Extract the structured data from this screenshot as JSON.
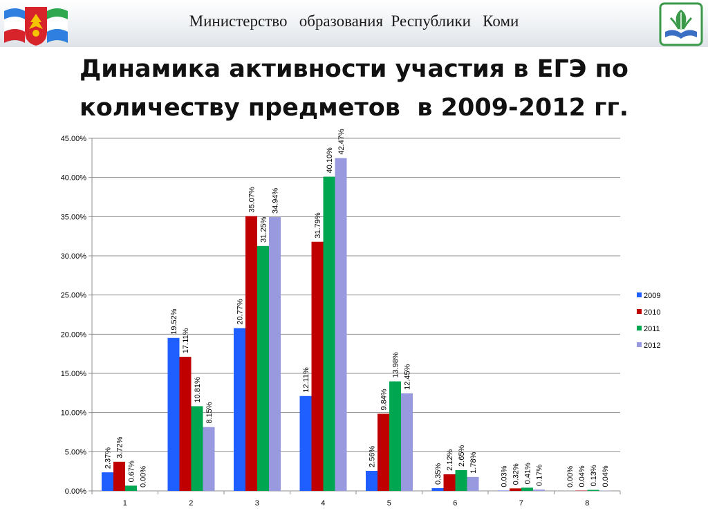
{
  "header": {
    "organization": "Министерство   образования  Республики   Коми"
  },
  "title": {
    "line1": "Динамика активности участия в ЕГЭ по",
    "line2": "количеству предметов  в 2009-2012 гг."
  },
  "colors": {
    "header_band": "#e4e8ec",
    "series": [
      "#1f5fff",
      "#c00000",
      "#00a650",
      "#9999e0"
    ],
    "grid": "#8c8c8c"
  },
  "chart_data": {
    "type": "bar",
    "categories": [
      "1",
      "2",
      "3",
      "4",
      "5",
      "6",
      "7",
      "8"
    ],
    "ylim": [
      0,
      0.45
    ],
    "yticks": [
      "0.00%",
      "5.00%",
      "10.00%",
      "15.00%",
      "20.00%",
      "25.00%",
      "30.00%",
      "35.00%",
      "40.00%",
      "45.00%"
    ],
    "grid": true,
    "legend": "right",
    "series": [
      {
        "name": "2009",
        "values": [
          0.0237,
          0.1952,
          0.2077,
          0.1211,
          0.0256,
          0.0035,
          0.0003,
          0.0
        ],
        "labels": [
          "2.37%",
          "19.52%",
          "20.77%",
          "12.11%",
          "2.56%",
          "0.35%",
          "0.03%",
          "0.00%"
        ]
      },
      {
        "name": "2010",
        "values": [
          0.0372,
          0.1711,
          0.3507,
          0.3179,
          0.0984,
          0.0212,
          0.0032,
          0.0004
        ],
        "labels": [
          "3.72%",
          "17.11%",
          "35.07%",
          "31.79%",
          "9.84%",
          "2.12%",
          "0.32%",
          "0.04%"
        ]
      },
      {
        "name": "2011",
        "values": [
          0.0067,
          0.1081,
          0.3125,
          0.401,
          0.1398,
          0.0265,
          0.0041,
          0.0013
        ],
        "labels": [
          "0.67%",
          "10.81%",
          "31.25%",
          "40.10%",
          "13.98%",
          "2.65%",
          "0.41%",
          "0.13%"
        ]
      },
      {
        "name": "2012",
        "values": [
          0.0,
          0.0815,
          0.3494,
          0.4247,
          0.1245,
          0.0178,
          0.0017,
          0.0004
        ],
        "labels": [
          "0.00%",
          "8.15%",
          "34.94%",
          "42.47%",
          "12.45%",
          "1.78%",
          "0.17%",
          "0.04%"
        ]
      }
    ]
  }
}
